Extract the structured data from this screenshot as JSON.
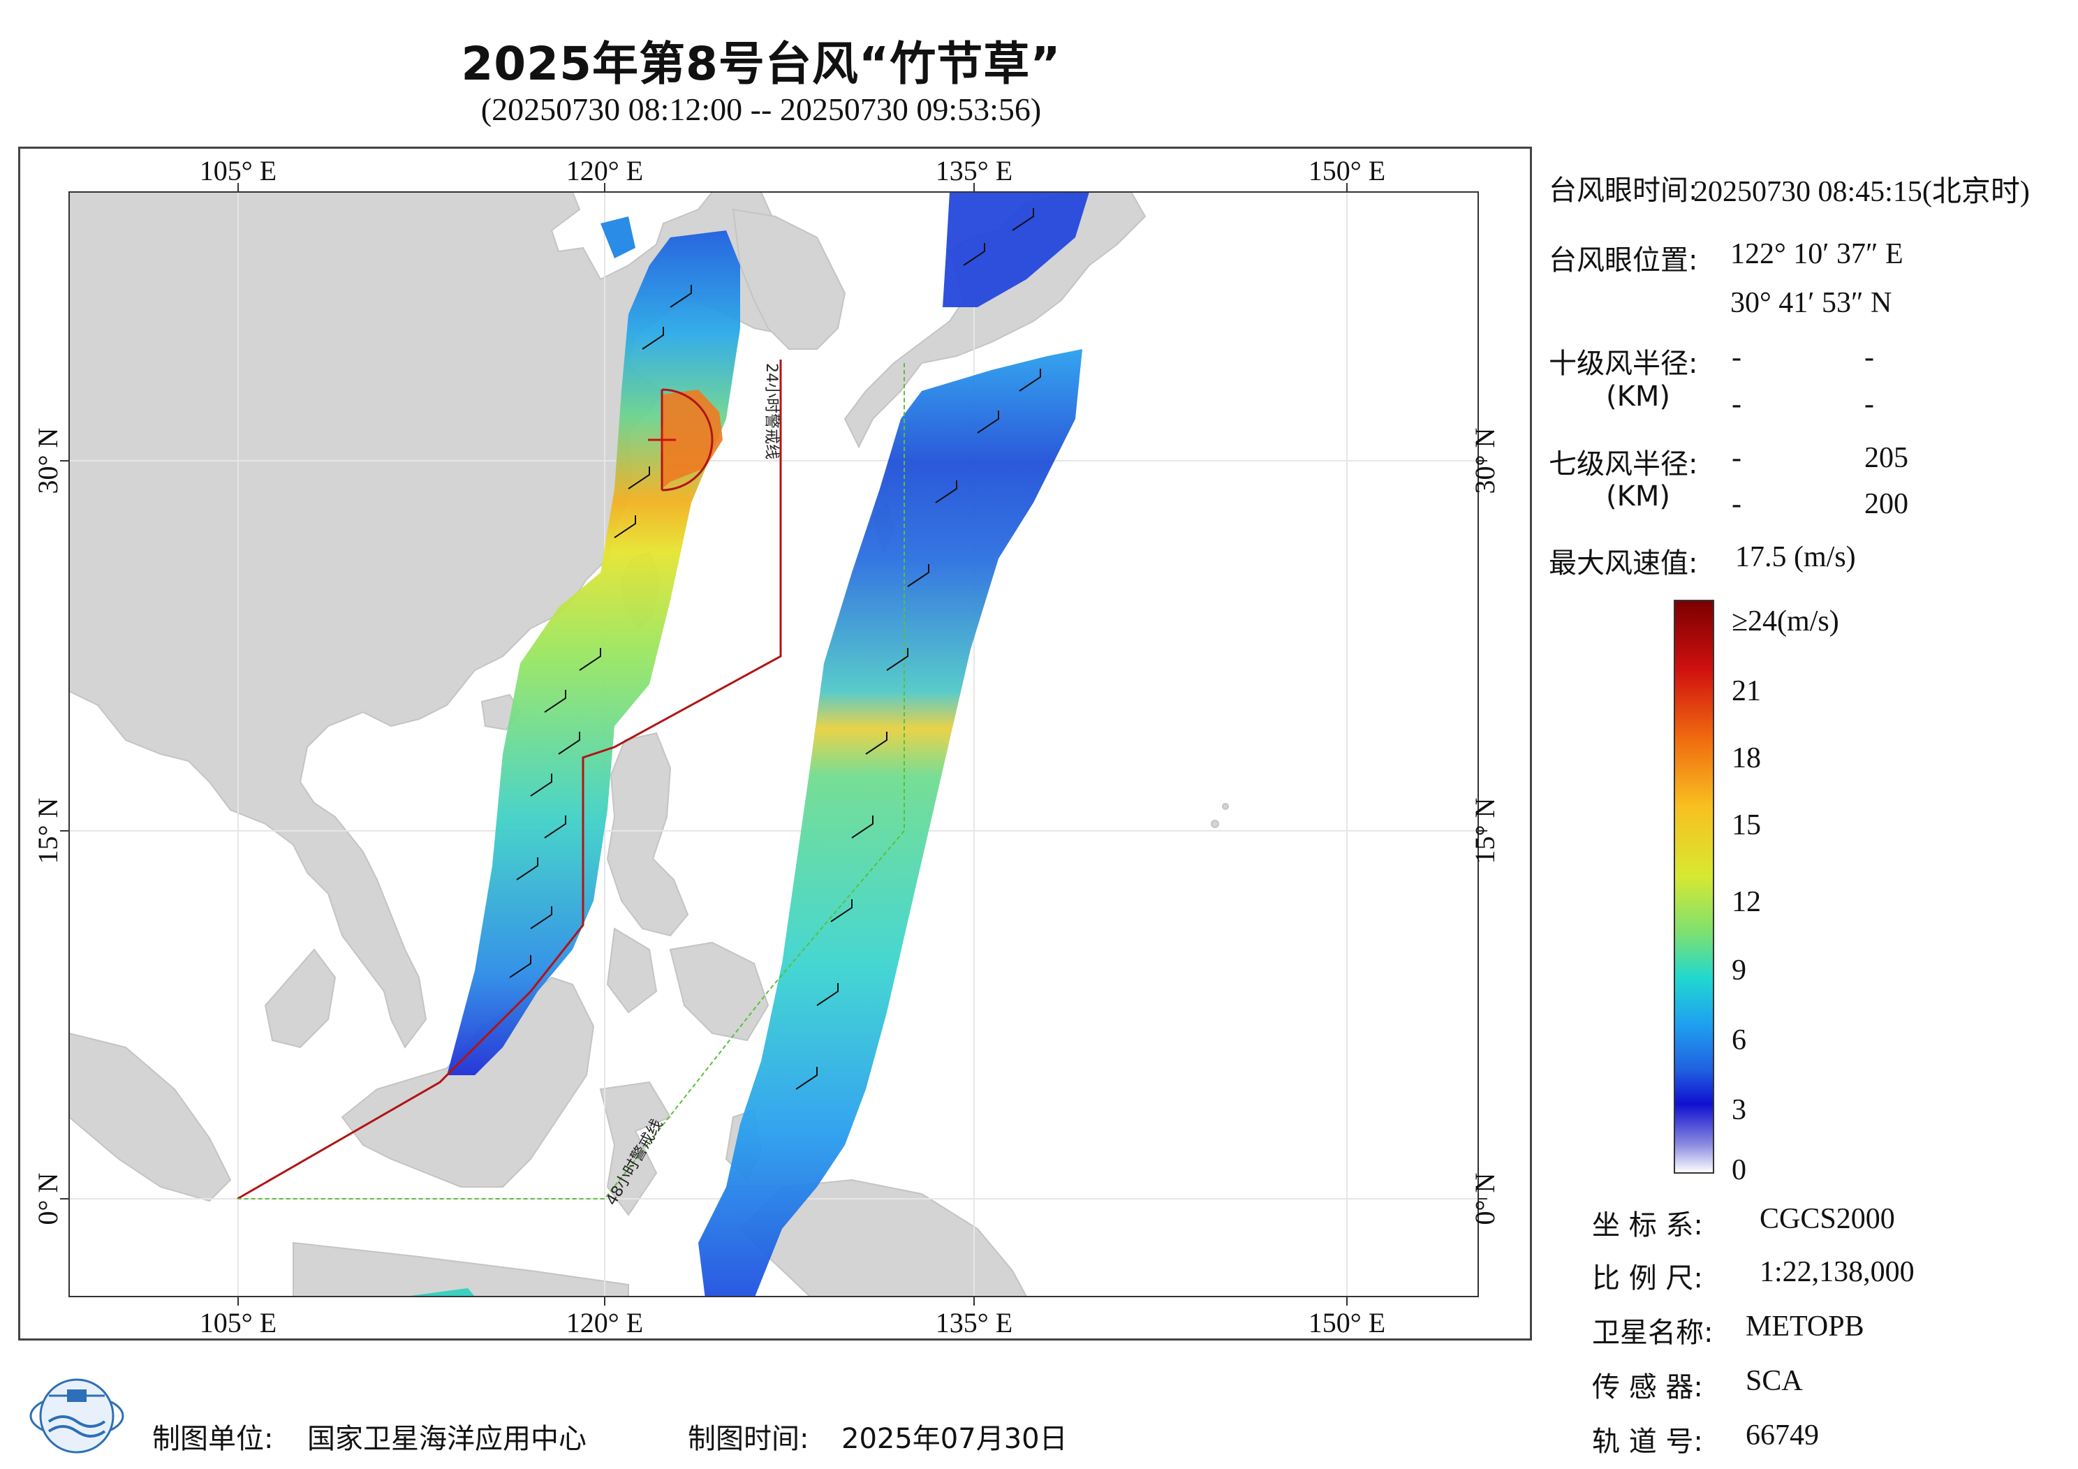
{
  "title": "2025年第8号台风“竹节草”",
  "subtitle": "(20250730 08:12:00 -- 20250730 09:53:56)",
  "map": {
    "lon_ticks_top": [
      "105° E",
      "120° E",
      "135° E",
      "150° E"
    ],
    "lon_ticks_bottom": [
      "105° E",
      "120° E",
      "135° E",
      "150° E"
    ],
    "lat_ticks_left": [
      "30° N",
      "15° N",
      "0° N"
    ],
    "lat_ticks_right": [
      "30° N",
      "15° N",
      "0° N"
    ],
    "warning_line_24h": "24小时警戒线",
    "warning_line_48h": "48小时警戒线",
    "colors": {
      "land": "#d4d4d4",
      "sea": "#ffffff",
      "warning_24h": "#b01515",
      "warning_48h": "#5cbf3a"
    }
  },
  "info": {
    "eye_time_label": "台风眼时间:",
    "eye_time_value": "20250730 08:45:15(北京时)",
    "eye_pos_label": "台风眼位置:",
    "eye_lon": "122° 10′ 37″ E",
    "eye_lat": "30° 41′ 53″ N",
    "r10_label": "十级风半径:",
    "r10_unit": "(KM)",
    "r10_values": [
      "-",
      "-",
      "-",
      "-"
    ],
    "r7_label": "七级风半径:",
    "r7_unit": "(KM)",
    "r7_values": [
      "-",
      "205",
      "-",
      "200"
    ],
    "max_wind_label": "最大风速值:",
    "max_wind_value": "17.5 (m/s)"
  },
  "colorbar": {
    "labels": [
      "≥24(m/s)",
      "21",
      "18",
      "15",
      "12",
      "9",
      "6",
      "3",
      "0"
    ],
    "stops": [
      "#7a0000",
      "#d01010",
      "#f06a10",
      "#f8c020",
      "#d8e830",
      "#7ee070",
      "#20d8d0",
      "#1fa0f0",
      "#2060e0",
      "#1010d0",
      "#8a8ae0",
      "#ffffff"
    ]
  },
  "meta": {
    "crs_label": "坐 标 系:",
    "crs_value": "CGCS2000",
    "scale_label": "比 例 尺:",
    "scale_value": "1:22,138,000",
    "satellite_label": "卫星名称:",
    "satellite_value": "METOPB",
    "sensor_label": "传 感 器:",
    "sensor_value": "SCA",
    "orbit_label": "轨 道 号:",
    "orbit_value": "66749"
  },
  "footer": {
    "producer_label": "制图单位:",
    "producer_value": "国家卫星海洋应用中心",
    "date_label": "制图时间:",
    "date_value": "2025年07月30日"
  }
}
